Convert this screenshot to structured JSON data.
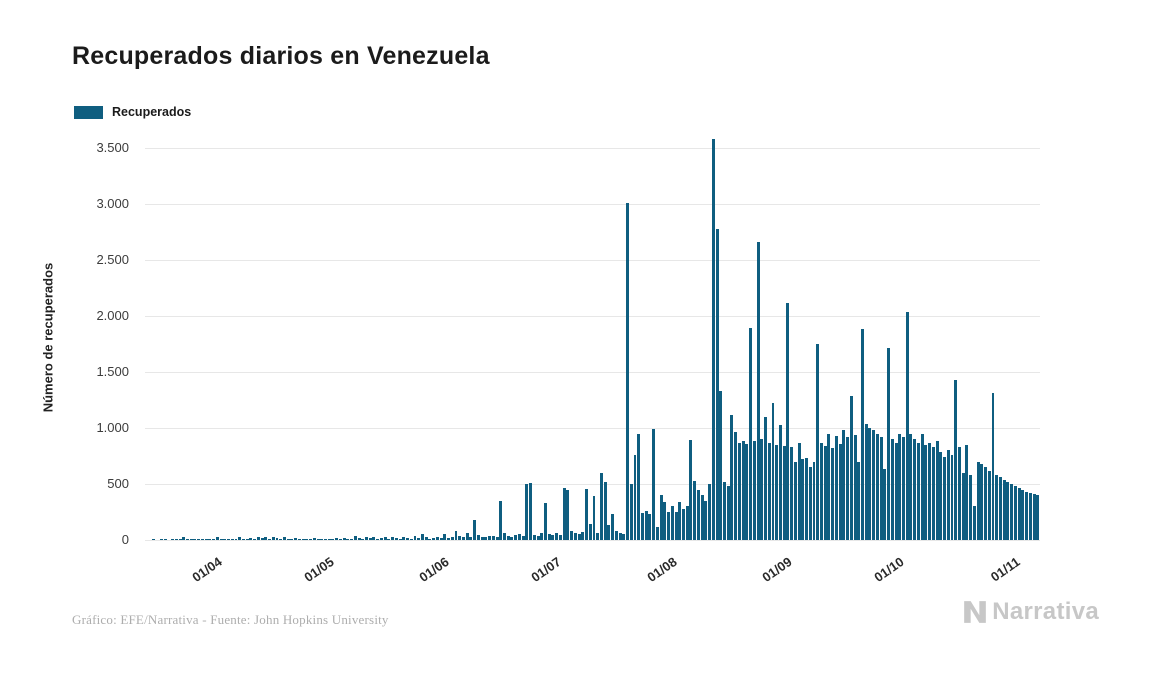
{
  "title": "Recuperados diarios en Venezuela",
  "legend": {
    "label": "Recuperados",
    "color": "#0f5e80"
  },
  "footer": {
    "credit": "Gráfico: EFE/Narrativa - Fuente: John Hopkins University",
    "brand": "Narrativa"
  },
  "chart_data": {
    "type": "bar",
    "title": "Recuperados diarios en Venezuela",
    "ylabel": "Número de recuperados",
    "xlabel": "",
    "ylim": [
      0,
      3500
    ],
    "grid": "horizontal",
    "legend_position": "top-left",
    "bar_color": "#0f5e80",
    "start_date": "2020-03-13",
    "x_tick_labels": [
      "01/04",
      "01/05",
      "01/06",
      "01/07",
      "01/08",
      "01/09",
      "01/10",
      "01/11"
    ],
    "x_tick_indices": [
      19,
      49,
      80,
      110,
      141,
      172,
      202,
      233
    ],
    "y_ticks": [
      0,
      500,
      1000,
      1500,
      2000,
      2500,
      3000,
      3500
    ],
    "y_tick_labels": [
      "0",
      "500",
      "1.000",
      "1.500",
      "2.000",
      "2.500",
      "3.000",
      "3.500"
    ],
    "values": [
      0,
      0,
      2,
      0,
      1,
      4,
      0,
      2,
      5,
      8,
      30,
      3,
      12,
      4,
      8,
      2,
      5,
      1,
      3,
      28,
      5,
      10,
      3,
      1,
      12,
      25,
      6,
      4,
      20,
      8,
      25,
      15,
      25,
      8,
      25,
      20,
      5,
      25,
      10,
      7,
      18,
      5,
      3,
      10,
      6,
      15,
      7,
      12,
      8,
      10,
      5,
      15,
      8,
      20,
      12,
      6,
      40,
      18,
      10,
      25,
      15,
      30,
      10,
      22,
      25,
      8,
      30,
      20,
      12,
      28,
      15,
      10,
      35,
      20,
      50,
      28,
      12,
      18,
      25,
      15,
      55,
      20,
      30,
      80,
      40,
      25,
      60,
      30,
      180,
      45,
      30,
      25,
      40,
      35,
      30,
      350,
      60,
      40,
      30,
      45,
      50,
      35,
      500,
      505,
      45,
      40,
      60,
      330,
      50,
      45,
      60,
      45,
      460,
      450,
      80,
      60,
      50,
      70,
      455,
      140,
      390,
      60,
      600,
      520,
      130,
      230,
      80,
      60,
      50,
      3010,
      500,
      760,
      950,
      240,
      260,
      230,
      990,
      120,
      400,
      340,
      250,
      300,
      250,
      340,
      280,
      300,
      890,
      530,
      450,
      400,
      350,
      500,
      3580,
      2780,
      1330,
      520,
      480,
      1120,
      960,
      870,
      880,
      860,
      1890,
      880,
      2660,
      900,
      1100,
      870,
      1220,
      850,
      1030,
      840,
      2120,
      830,
      700,
      870,
      720,
      730,
      650,
      700,
      1750,
      870,
      840,
      950,
      820,
      930,
      860,
      980,
      920,
      1290,
      940,
      700,
      1880,
      1040,
      1000,
      980,
      950,
      920,
      630,
      1710,
      900,
      870,
      950,
      920,
      2040,
      950,
      900,
      870,
      950,
      850,
      870,
      830,
      880,
      790,
      740,
      800,
      760,
      1430,
      830,
      600,
      850,
      580,
      300,
      700,
      680,
      650,
      620,
      1310,
      580,
      560,
      540,
      520,
      500,
      480,
      460,
      450,
      430,
      420,
      410,
      400
    ]
  }
}
